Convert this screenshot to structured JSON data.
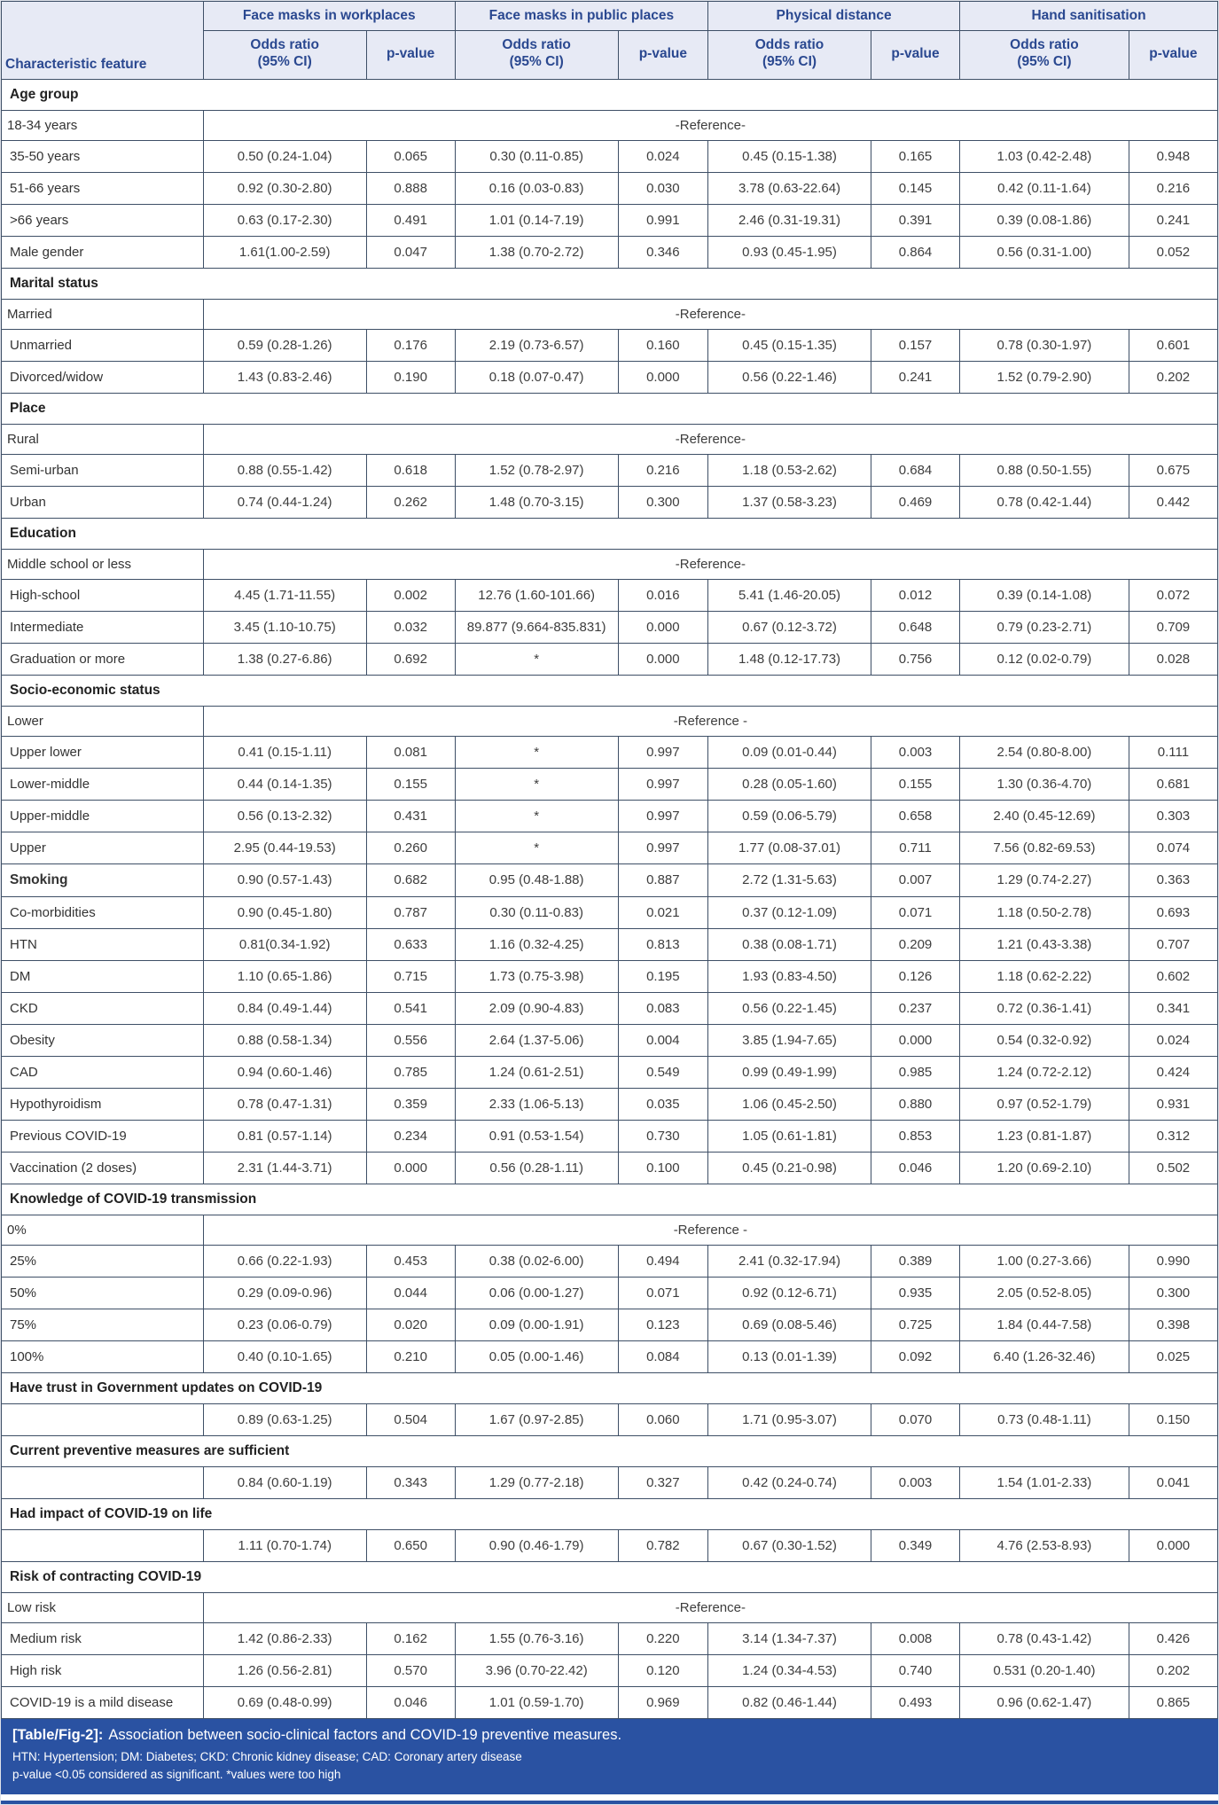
{
  "table": {
    "feature_header": "Characteristic feature",
    "groups": [
      "Face masks in workplaces",
      "Face masks in public places",
      "Physical distance",
      "Hand sanitisation"
    ],
    "subheaders": {
      "odds_ratio_line1": "Odds ratio",
      "odds_ratio_line2": "(95% CI)",
      "p_value": "p-value"
    },
    "rows": [
      {
        "type": "section",
        "label": "Age group"
      },
      {
        "type": "reference",
        "label": "18-34 years",
        "value": "-Reference-"
      },
      {
        "type": "data",
        "label": "35-50 years",
        "cells": [
          "0.50 (0.24-1.04)",
          "0.065",
          "0.30 (0.11-0.85)",
          "0.024",
          "0.45 (0.15-1.38)",
          "0.165",
          "1.03 (0.42-2.48)",
          "0.948"
        ]
      },
      {
        "type": "data",
        "label": "51-66 years",
        "cells": [
          "0.92 (0.30-2.80)",
          "0.888",
          "0.16 (0.03-0.83)",
          "0.030",
          "3.78 (0.63-22.64)",
          "0.145",
          "0.42 (0.11-1.64)",
          "0.216"
        ]
      },
      {
        "type": "data",
        "label": ">66 years",
        "cells": [
          "0.63 (0.17-2.30)",
          "0.491",
          "1.01 (0.14-7.19)",
          "0.991",
          "2.46 (0.31-19.31)",
          "0.391",
          "0.39 (0.08-1.86)",
          "0.241"
        ]
      },
      {
        "type": "data",
        "label": "Male gender",
        "cells": [
          "1.61(1.00-2.59)",
          "0.047",
          "1.38 (0.70-2.72)",
          "0.346",
          "0.93 (0.45-1.95)",
          "0.864",
          "0.56 (0.31-1.00)",
          "0.052"
        ]
      },
      {
        "type": "section",
        "label": "Marital status"
      },
      {
        "type": "reference",
        "label": "Married",
        "value": "-Reference-"
      },
      {
        "type": "data",
        "label": "Unmarried",
        "cells": [
          "0.59 (0.28-1.26)",
          "0.176",
          "2.19 (0.73-6.57)",
          "0.160",
          "0.45 (0.15-1.35)",
          "0.157",
          "0.78 (0.30-1.97)",
          "0.601"
        ]
      },
      {
        "type": "data",
        "label": "Divorced/widow",
        "cells": [
          "1.43 (0.83-2.46)",
          "0.190",
          "0.18 (0.07-0.47)",
          "0.000",
          "0.56 (0.22-1.46)",
          "0.241",
          "1.52 (0.79-2.90)",
          "0.202"
        ]
      },
      {
        "type": "section",
        "label": "Place"
      },
      {
        "type": "reference",
        "label": "Rural",
        "value": "-Reference-"
      },
      {
        "type": "data",
        "label": "Semi-urban",
        "cells": [
          "0.88 (0.55-1.42)",
          "0.618",
          "1.52 (0.78-2.97)",
          "0.216",
          "1.18 (0.53-2.62)",
          "0.684",
          "0.88 (0.50-1.55)",
          "0.675"
        ]
      },
      {
        "type": "data",
        "label": "Urban",
        "cells": [
          "0.74 (0.44-1.24)",
          "0.262",
          "1.48 (0.70-3.15)",
          "0.300",
          "1.37 (0.58-3.23)",
          "0.469",
          "0.78 (0.42-1.44)",
          "0.442"
        ]
      },
      {
        "type": "section",
        "label": "Education"
      },
      {
        "type": "reference",
        "label": "Middle school or less",
        "value": "-Reference-"
      },
      {
        "type": "data",
        "label": "High-school",
        "cells": [
          "4.45 (1.71-11.55)",
          "0.002",
          "12.76 (1.60-101.66)",
          "0.016",
          "5.41 (1.46-20.05)",
          "0.012",
          "0.39 (0.14-1.08)",
          "0.072"
        ]
      },
      {
        "type": "data",
        "label": "Intermediate",
        "cells": [
          "3.45 (1.10-10.75)",
          "0.032",
          "89.877 (9.664-835.831)",
          "0.000",
          "0.67 (0.12-3.72)",
          "0.648",
          "0.79 (0.23-2.71)",
          "0.709"
        ]
      },
      {
        "type": "data",
        "label": "Graduation or more",
        "cells": [
          "1.38 (0.27-6.86)",
          "0.692",
          "*",
          "0.000",
          "1.48 (0.12-17.73)",
          "0.756",
          "0.12 (0.02-0.79)",
          "0.028"
        ]
      },
      {
        "type": "section",
        "label": "Socio-economic status"
      },
      {
        "type": "reference",
        "label": "Lower",
        "value": "-Reference -"
      },
      {
        "type": "data",
        "label": "Upper lower",
        "cells": [
          "0.41 (0.15-1.11)",
          "0.081",
          "*",
          "0.997",
          "0.09 (0.01-0.44)",
          "0.003",
          "2.54 (0.80-8.00)",
          "0.111"
        ]
      },
      {
        "type": "data",
        "label": "Lower-middle",
        "cells": [
          "0.44 (0.14-1.35)",
          "0.155",
          "*",
          "0.997",
          "0.28 (0.05-1.60)",
          "0.155",
          "1.30 (0.36-4.70)",
          "0.681"
        ]
      },
      {
        "type": "data",
        "label": "Upper-middle",
        "cells": [
          "0.56 (0.13-2.32)",
          "0.431",
          "*",
          "0.997",
          "0.59 (0.06-5.79)",
          "0.658",
          "2.40 (0.45-12.69)",
          "0.303"
        ]
      },
      {
        "type": "data",
        "label": "Upper",
        "cells": [
          "2.95 (0.44-19.53)",
          "0.260",
          "*",
          "0.997",
          "1.77 (0.08-37.01)",
          "0.711",
          "7.56 (0.82-69.53)",
          "0.074"
        ]
      },
      {
        "type": "data",
        "label": "Smoking",
        "bold": true,
        "cells": [
          "0.90 (0.57-1.43)",
          "0.682",
          "0.95 (0.48-1.88)",
          "0.887",
          "2.72 (1.31-5.63)",
          "0.007",
          "1.29 (0.74-2.27)",
          "0.363"
        ]
      },
      {
        "type": "data",
        "label": "Co-morbidities",
        "cells": [
          "0.90 (0.45-1.80)",
          "0.787",
          "0.30 (0.11-0.83)",
          "0.021",
          "0.37 (0.12-1.09)",
          "0.071",
          "1.18 (0.50-2.78)",
          "0.693"
        ]
      },
      {
        "type": "data",
        "label": "HTN",
        "cells": [
          "0.81(0.34-1.92)",
          "0.633",
          "1.16 (0.32-4.25)",
          "0.813",
          "0.38 (0.08-1.71)",
          "0.209",
          "1.21 (0.43-3.38)",
          "0.707"
        ]
      },
      {
        "type": "data",
        "label": "DM",
        "cells": [
          "1.10 (0.65-1.86)",
          "0.715",
          "1.73 (0.75-3.98)",
          "0.195",
          "1.93 (0.83-4.50)",
          "0.126",
          "1.18 (0.62-2.22)",
          "0.602"
        ]
      },
      {
        "type": "data",
        "label": "CKD",
        "cells": [
          "0.84 (0.49-1.44)",
          "0.541",
          "2.09 (0.90-4.83)",
          "0.083",
          "0.56 (0.22-1.45)",
          "0.237",
          "0.72 (0.36-1.41)",
          "0.341"
        ]
      },
      {
        "type": "data",
        "label": "Obesity",
        "cells": [
          "0.88 (0.58-1.34)",
          "0.556",
          "2.64 (1.37-5.06)",
          "0.004",
          "3.85 (1.94-7.65)",
          "0.000",
          "0.54 (0.32-0.92)",
          "0.024"
        ]
      },
      {
        "type": "data",
        "label": "CAD",
        "cells": [
          "0.94 (0.60-1.46)",
          "0.785",
          "1.24 (0.61-2.51)",
          "0.549",
          "0.99 (0.49-1.99)",
          "0.985",
          "1.24 (0.72-2.12)",
          "0.424"
        ]
      },
      {
        "type": "data",
        "label": "Hypothyroidism",
        "cells": [
          "0.78 (0.47-1.31)",
          "0.359",
          "2.33 (1.06-5.13)",
          "0.035",
          "1.06 (0.45-2.50)",
          "0.880",
          "0.97 (0.52-1.79)",
          "0.931"
        ]
      },
      {
        "type": "data",
        "label": "Previous COVID-19",
        "cells": [
          "0.81 (0.57-1.14)",
          "0.234",
          "0.91 (0.53-1.54)",
          "0.730",
          "1.05 (0.61-1.81)",
          "0.853",
          "1.23 (0.81-1.87)",
          "0.312"
        ]
      },
      {
        "type": "data",
        "label": "Vaccination (2 doses)",
        "cells": [
          "2.31 (1.44-3.71)",
          "0.000",
          "0.56 (0.28-1.11)",
          "0.100",
          "0.45 (0.21-0.98)",
          "0.046",
          "1.20 (0.69-2.10)",
          "0.502"
        ]
      },
      {
        "type": "section",
        "label": "Knowledge of COVID-19 transmission"
      },
      {
        "type": "reference",
        "label": "0%",
        "value": "-Reference -"
      },
      {
        "type": "data",
        "label": "25%",
        "cells": [
          "0.66 (0.22-1.93)",
          "0.453",
          "0.38 (0.02-6.00)",
          "0.494",
          "2.41 (0.32-17.94)",
          "0.389",
          "1.00 (0.27-3.66)",
          "0.990"
        ]
      },
      {
        "type": "data",
        "label": "50%",
        "cells": [
          "0.29 (0.09-0.96)",
          "0.044",
          "0.06 (0.00-1.27)",
          "0.071",
          "0.92 (0.12-6.71)",
          "0.935",
          "2.05 (0.52-8.05)",
          "0.300"
        ]
      },
      {
        "type": "data",
        "label": "75%",
        "cells": [
          "0.23 (0.06-0.79)",
          "0.020",
          "0.09 (0.00-1.91)",
          "0.123",
          "0.69 (0.08-5.46)",
          "0.725",
          "1.84 (0.44-7.58)",
          "0.398"
        ]
      },
      {
        "type": "data",
        "label": "100%",
        "cells": [
          "0.40 (0.10-1.65)",
          "0.210",
          "0.05 (0.00-1.46)",
          "0.084",
          "0.13 (0.01-1.39)",
          "0.092",
          "6.40 (1.26-32.46)",
          "0.025"
        ]
      },
      {
        "type": "section",
        "label": "Have trust in Government updates on COVID-19"
      },
      {
        "type": "data",
        "label": "",
        "cells": [
          "0.89 (0.63-1.25)",
          "0.504",
          "1.67 (0.97-2.85)",
          "0.060",
          "1.71 (0.95-3.07)",
          "0.070",
          "0.73 (0.48-1.11)",
          "0.150"
        ]
      },
      {
        "type": "section",
        "label": "Current preventive measures are sufficient"
      },
      {
        "type": "data",
        "label": "",
        "cells": [
          "0.84 (0.60-1.19)",
          "0.343",
          "1.29 (0.77-2.18)",
          "0.327",
          "0.42 (0.24-0.74)",
          "0.003",
          "1.54 (1.01-2.33)",
          "0.041"
        ]
      },
      {
        "type": "section",
        "label": "Had impact of COVID-19 on life"
      },
      {
        "type": "data",
        "label": "",
        "cells": [
          "1.11 (0.70-1.74)",
          "0.650",
          "0.90 (0.46-1.79)",
          "0.782",
          "0.67 (0.30-1.52)",
          "0.349",
          "4.76 (2.53-8.93)",
          "0.000"
        ]
      },
      {
        "type": "section",
        "label": "Risk of contracting COVID-19"
      },
      {
        "type": "reference",
        "label": "Low risk",
        "value": "-Reference-"
      },
      {
        "type": "data",
        "label": "Medium risk",
        "cells": [
          "1.42 (0.86-2.33)",
          "0.162",
          "1.55 (0.76-3.16)",
          "0.220",
          "3.14 (1.34-7.37)",
          "0.008",
          "0.78 (0.43-1.42)",
          "0.426"
        ]
      },
      {
        "type": "data",
        "label": "High risk",
        "cells": [
          "1.26 (0.56-2.81)",
          "0.570",
          "3.96 (0.70-22.42)",
          "0.120",
          "1.24 (0.34-4.53)",
          "0.740",
          "0.531 (0.20-1.40)",
          "0.202"
        ]
      },
      {
        "type": "data",
        "label": "COVID-19 is a mild disease",
        "cells": [
          "0.69 (0.48-0.99)",
          "0.046",
          "1.01 (0.59-1.70)",
          "0.969",
          "0.82 (0.46-1.44)",
          "0.493",
          "0.96 (0.62-1.47)",
          "0.865"
        ]
      }
    ]
  },
  "footer": {
    "caption_tag": "[Table/Fig-2]:",
    "caption_text": "Association between socio-clinical factors and COVID-19 preventive measures.",
    "abbreviations": "HTN: Hypertension; DM: Diabetes; CKD: Chronic kidney disease; CAD: Coronary artery disease",
    "significance_note": "p-value <0.05 considered as significant. *values were too high"
  },
  "colors": {
    "header_bg": "#e7eaf5",
    "header_text": "#2a4890",
    "border": "#3e4f66",
    "footer_bg": "#2a52a2",
    "footer_text": "#ffffff",
    "body_text": "#3d3d3d"
  }
}
